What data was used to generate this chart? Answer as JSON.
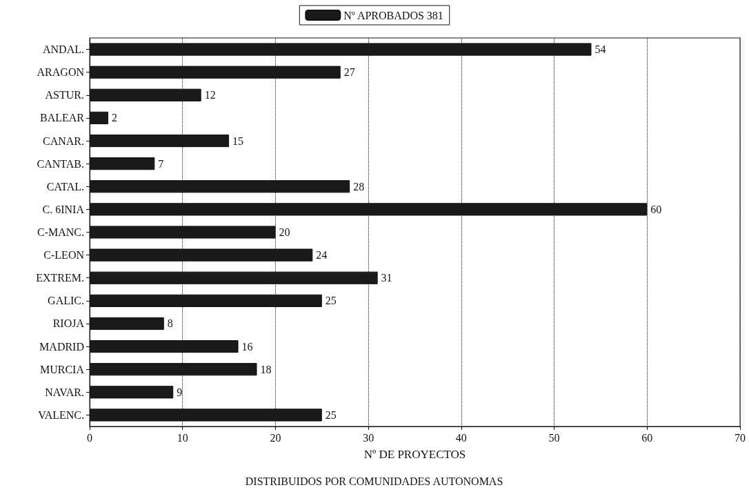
{
  "chart_data": {
    "type": "bar",
    "orientation": "horizontal",
    "xlabel": "Nº DE PROYECTOS",
    "annotations": [
      "DISTRIBUIDOS POR COMUNIDADES AUTONOMAS"
    ],
    "categories": [
      "ANDAL.",
      "ARAGON",
      "ASTUR.",
      "BALEAR",
      "CANAR.",
      "CANTAB.",
      "CATAL.",
      "C. 6INIA",
      "C-MANC.",
      "C-LEON",
      "EXTREM.",
      "GALIC.",
      "RIOJA",
      "MADRID",
      "MURCIA",
      "NAVAR.",
      "VALENC."
    ],
    "series": [
      {
        "name": "Nº APROBADOS 381",
        "color": "#1a1a1a",
        "values": [
          54,
          27,
          12,
          2,
          15,
          7,
          28,
          60,
          20,
          24,
          31,
          25,
          8,
          16,
          18,
          9,
          25
        ]
      }
    ],
    "xlim": [
      0,
      70
    ],
    "xticks": [
      0,
      10,
      20,
      30,
      40,
      50,
      60,
      70
    ],
    "grid": "x",
    "legend": "top",
    "data_labels": true
  }
}
